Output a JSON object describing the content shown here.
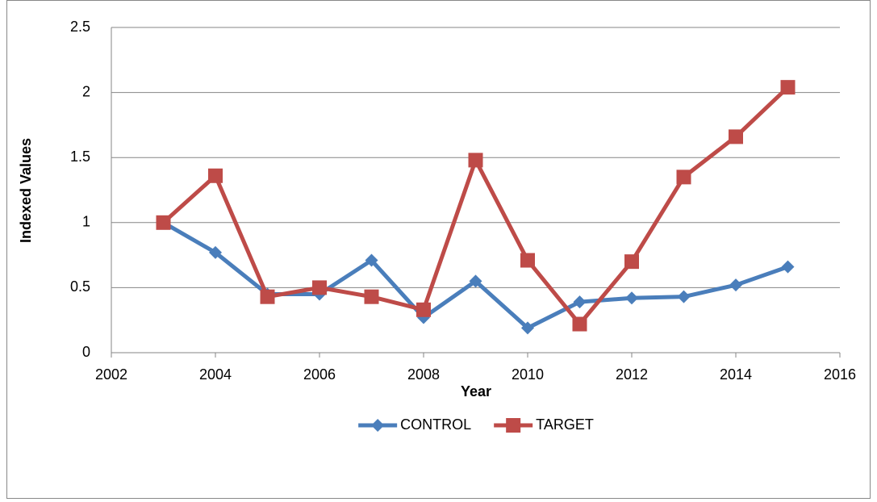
{
  "chart_data": {
    "type": "line",
    "x_label": "Year",
    "y_label": "Indexed Values",
    "x": [
      2003,
      2004,
      2005,
      2006,
      2007,
      2008,
      2009,
      2010,
      2011,
      2012,
      2013,
      2014,
      2015
    ],
    "series": [
      {
        "name": "CONTROL",
        "color": "#4a7ebb",
        "marker": "diamond",
        "values": [
          1.0,
          0.77,
          0.45,
          0.45,
          0.71,
          0.27,
          0.55,
          0.19,
          0.39,
          0.42,
          0.43,
          0.52,
          0.66
        ]
      },
      {
        "name": "TARGET",
        "color": "#be4b48",
        "marker": "square",
        "values": [
          1.0,
          1.36,
          0.43,
          0.5,
          0.43,
          0.33,
          1.48,
          0.71,
          0.22,
          0.7,
          1.35,
          1.66,
          2.04
        ]
      }
    ],
    "xlim": [
      2002,
      2016
    ],
    "xticks": [
      2002,
      2004,
      2006,
      2008,
      2010,
      2012,
      2014,
      2016
    ],
    "ylim": [
      0,
      2.5
    ],
    "yticks": [
      0,
      0.5,
      1,
      1.5,
      2,
      2.5
    ],
    "grid": true,
    "legend": "bottom"
  }
}
